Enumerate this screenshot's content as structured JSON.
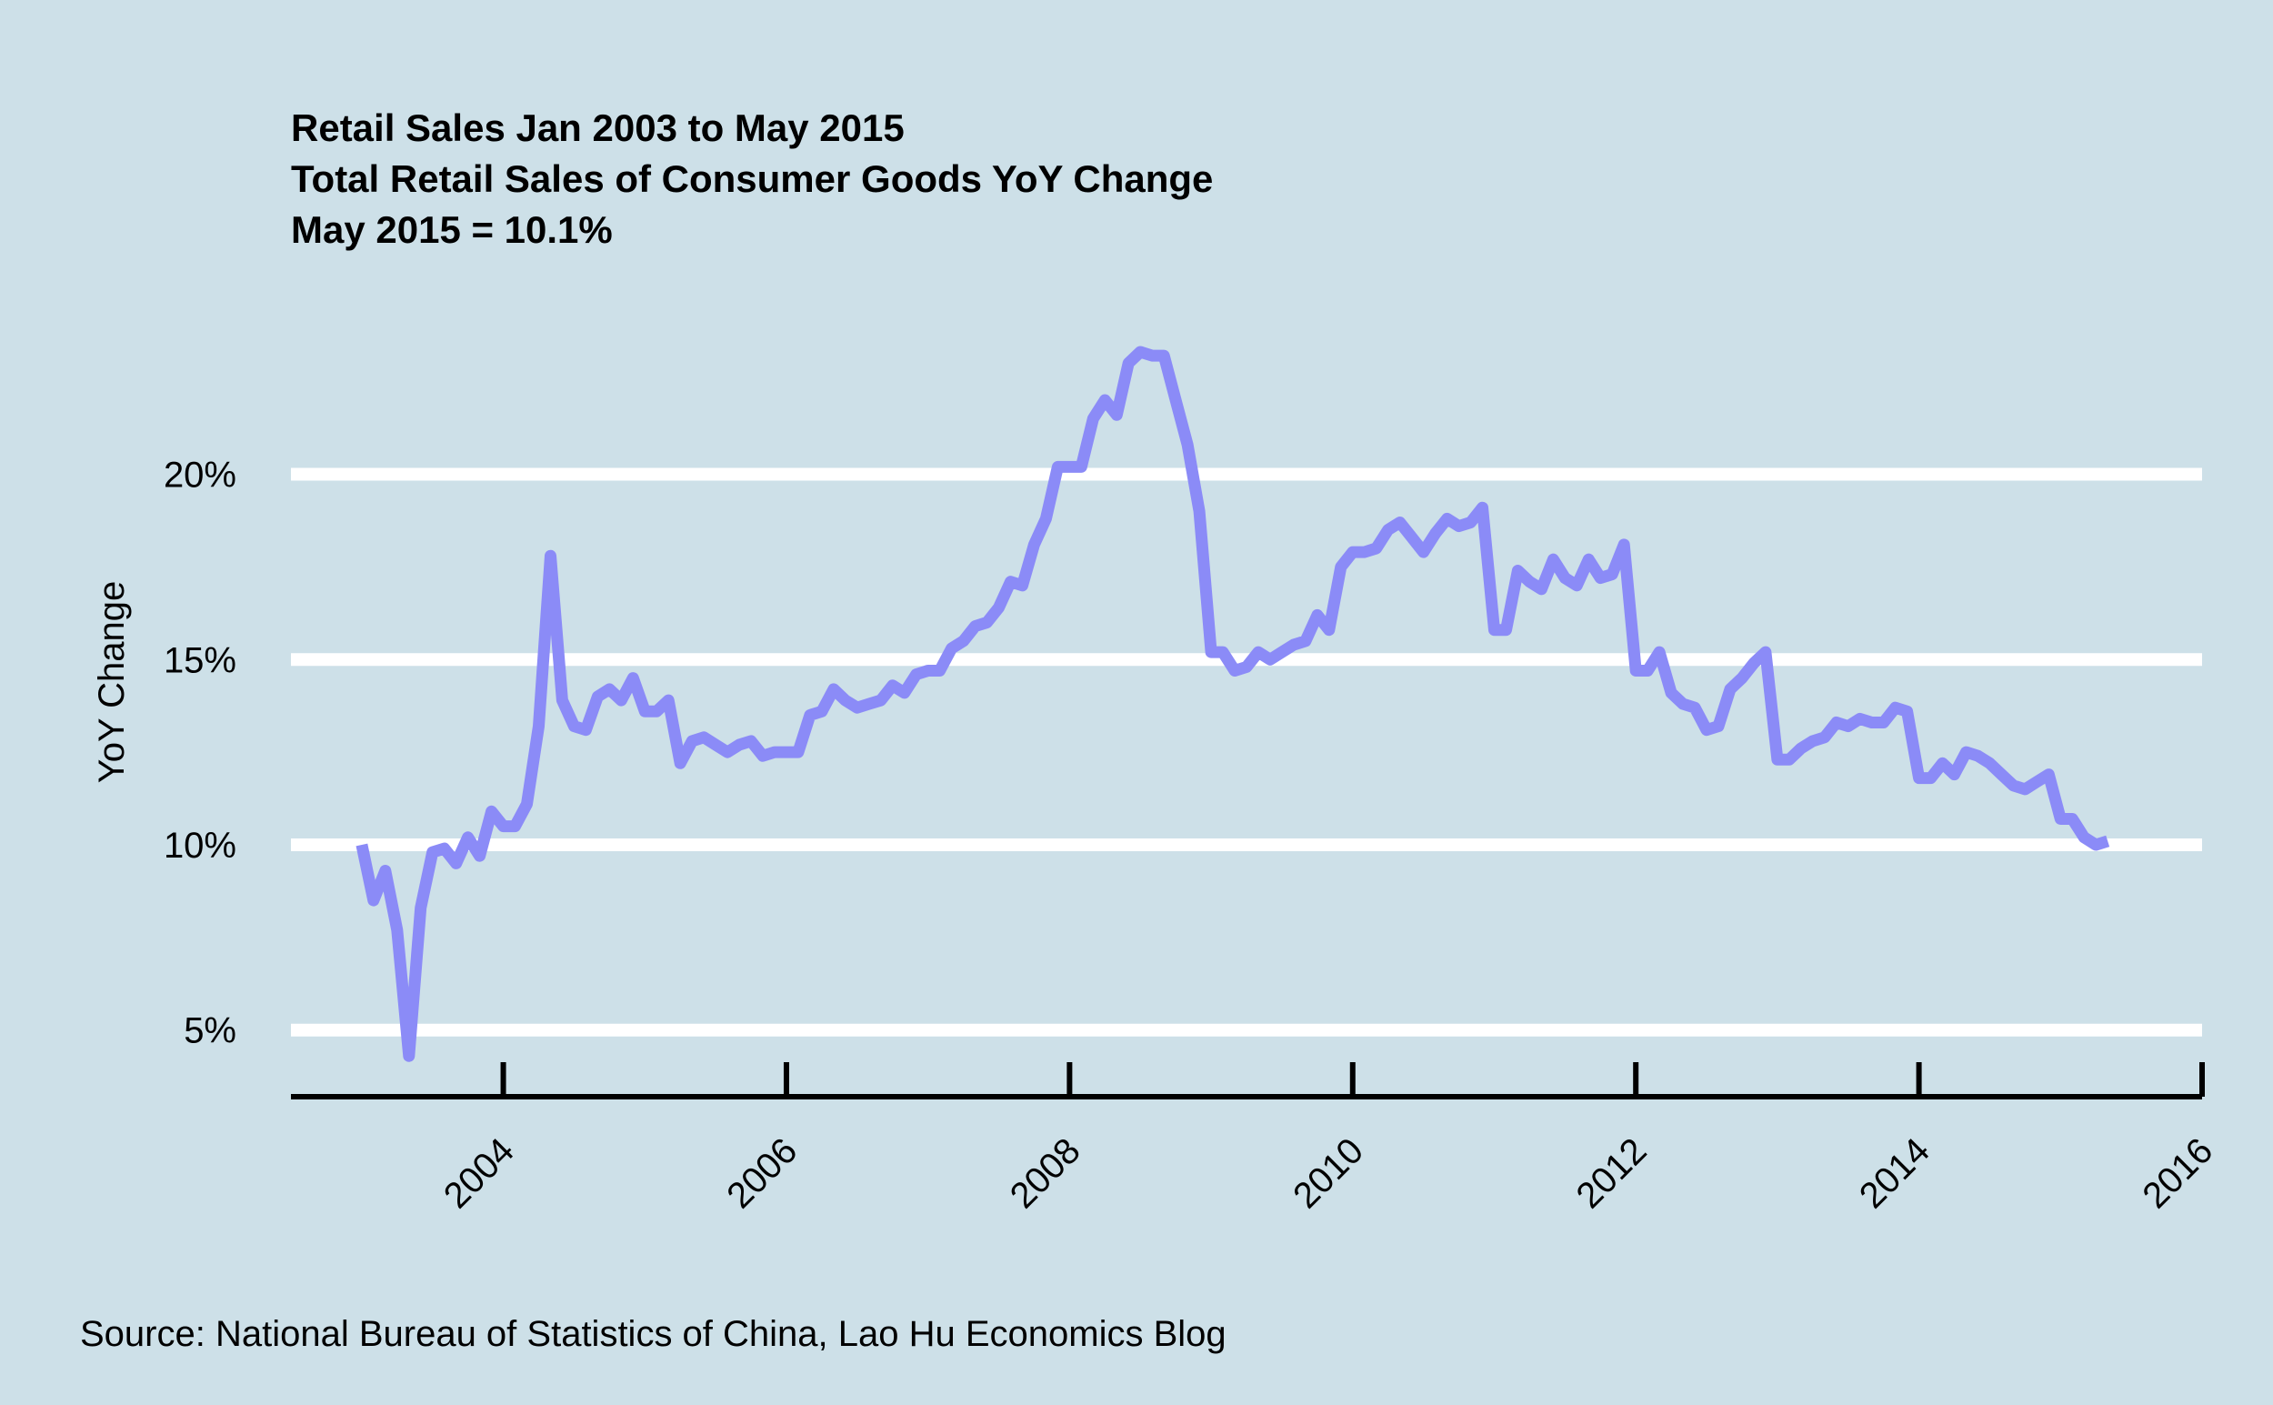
{
  "chart_data": {
    "type": "line",
    "title_lines": [
      "Retail Sales Jan 2003 to May 2015",
      "Total Retail Sales of Consumer Goods YoY Change",
      "May 2015 = 10.1%"
    ],
    "xlabel": "",
    "ylabel": "YoY Change",
    "x_tick_labels": [
      "2004",
      "2006",
      "2008",
      "2010",
      "2012",
      "2014",
      "2016"
    ],
    "x_ticks": [
      2004,
      2006,
      2008,
      2010,
      2012,
      2014,
      2016
    ],
    "y_tick_labels": [
      "5%",
      "10%",
      "15%",
      "20%"
    ],
    "y_ticks": [
      5,
      10,
      15,
      20
    ],
    "xlim": [
      2002.5,
      2016
    ],
    "ylim": [
      3.3,
      24.7
    ],
    "grid": "horizontal",
    "colors": {
      "background": "#cde0e8",
      "line": "#8b8bf7",
      "grid": "#ffffff",
      "axis": "#000000"
    },
    "source": "Source: National Bureau of Statistics of China, Lao Hu Economics Blog",
    "series": [
      {
        "x": [
          "2003-01",
          "2003-02",
          "2003-03",
          "2003-04",
          "2003-05",
          "2003-06",
          "2003-07",
          "2003-08",
          "2003-09",
          "2003-10",
          "2003-11",
          "2003-12",
          "2004-01",
          "2004-02",
          "2004-03",
          "2004-04",
          "2004-05",
          "2004-06",
          "2004-07",
          "2004-08",
          "2004-09",
          "2004-10",
          "2004-11",
          "2004-12",
          "2005-01",
          "2005-02",
          "2005-03",
          "2005-04",
          "2005-05",
          "2005-06",
          "2005-07",
          "2005-08",
          "2005-09",
          "2005-10",
          "2005-11",
          "2005-12",
          "2006-01",
          "2006-02",
          "2006-03",
          "2006-04",
          "2006-05",
          "2006-06",
          "2006-07",
          "2006-08",
          "2006-09",
          "2006-10",
          "2006-11",
          "2006-12",
          "2007-01",
          "2007-02",
          "2007-03",
          "2007-04",
          "2007-05",
          "2007-06",
          "2007-07",
          "2007-08",
          "2007-09",
          "2007-10",
          "2007-11",
          "2007-12",
          "2008-01",
          "2008-02",
          "2008-03",
          "2008-04",
          "2008-05",
          "2008-06",
          "2008-07",
          "2008-08",
          "2008-09",
          "2008-10",
          "2008-11",
          "2008-12",
          "2009-01",
          "2009-02",
          "2009-03",
          "2009-04",
          "2009-05",
          "2009-06",
          "2009-07",
          "2009-08",
          "2009-09",
          "2009-10",
          "2009-11",
          "2009-12",
          "2010-01",
          "2010-02",
          "2010-03",
          "2010-04",
          "2010-05",
          "2010-06",
          "2010-07",
          "2010-08",
          "2010-09",
          "2010-10",
          "2010-11",
          "2010-12",
          "2011-01",
          "2011-02",
          "2011-03",
          "2011-04",
          "2011-05",
          "2011-06",
          "2011-07",
          "2011-08",
          "2011-09",
          "2011-10",
          "2011-11",
          "2011-12",
          "2012-01",
          "2012-02",
          "2012-03",
          "2012-04",
          "2012-05",
          "2012-06",
          "2012-07",
          "2012-08",
          "2012-09",
          "2012-10",
          "2012-11",
          "2012-12",
          "2013-01",
          "2013-02",
          "2013-03",
          "2013-04",
          "2013-05",
          "2013-06",
          "2013-07",
          "2013-08",
          "2013-09",
          "2013-10",
          "2013-11",
          "2013-12",
          "2014-01",
          "2014-02",
          "2014-03",
          "2014-04",
          "2014-05",
          "2014-06",
          "2014-07",
          "2014-08",
          "2014-09",
          "2014-10",
          "2014-11",
          "2014-12",
          "2015-01",
          "2015-02",
          "2015-03",
          "2015-04",
          "2015-05"
        ],
        "values": [
          10.0,
          8.5,
          9.3,
          7.7,
          4.3,
          8.3,
          9.8,
          9.9,
          9.5,
          10.2,
          9.7,
          10.9,
          10.5,
          10.5,
          11.1,
          13.2,
          17.8,
          13.9,
          13.2,
          13.1,
          14.0,
          14.2,
          13.9,
          14.5,
          13.6,
          13.6,
          13.9,
          12.2,
          12.8,
          12.9,
          12.7,
          12.5,
          12.7,
          12.8,
          12.4,
          12.5,
          12.5,
          12.5,
          13.5,
          13.6,
          14.2,
          13.9,
          13.7,
          13.8,
          13.9,
          14.3,
          14.1,
          14.6,
          14.7,
          14.7,
          15.3,
          15.5,
          15.9,
          16.0,
          16.4,
          17.1,
          17.0,
          18.1,
          18.8,
          20.2,
          20.2,
          20.2,
          21.5,
          22.0,
          21.6,
          23.0,
          23.3,
          23.2,
          23.2,
          22.0,
          20.8,
          19.0,
          15.2,
          15.2,
          14.7,
          14.8,
          15.2,
          15.0,
          15.2,
          15.4,
          15.5,
          16.2,
          15.8,
          17.5,
          17.9,
          17.9,
          18.0,
          18.5,
          18.7,
          18.3,
          17.9,
          18.4,
          18.8,
          18.6,
          18.7,
          19.1,
          15.8,
          15.8,
          17.4,
          17.1,
          16.9,
          17.7,
          17.2,
          17.0,
          17.7,
          17.2,
          17.3,
          18.1,
          14.7,
          14.7,
          15.2,
          14.1,
          13.8,
          13.7,
          13.1,
          13.2,
          14.2,
          14.5,
          14.9,
          15.2,
          12.3,
          12.3,
          12.6,
          12.8,
          12.9,
          13.3,
          13.2,
          13.4,
          13.3,
          13.3,
          13.7,
          13.6,
          11.8,
          11.8,
          12.2,
          11.9,
          12.5,
          12.4,
          12.2,
          11.9,
          11.6,
          11.5,
          11.7,
          11.9,
          10.7,
          10.7,
          10.2,
          10.0,
          10.1
        ]
      }
    ]
  }
}
